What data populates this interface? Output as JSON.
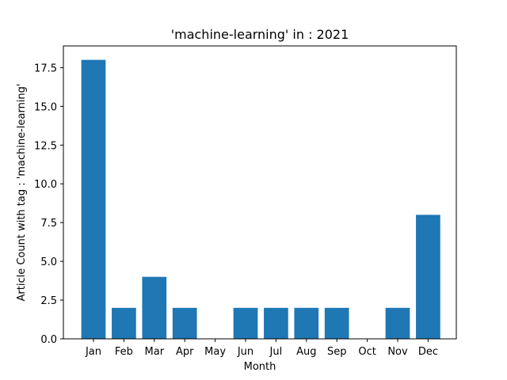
{
  "chart_data": {
    "type": "bar",
    "title": "'machine-learning' in : 2021",
    "xlabel": "Month",
    "ylabel": "Article Count with tag : 'machine-learning'",
    "categories": [
      "Jan",
      "Feb",
      "Mar",
      "Apr",
      "May",
      "Jun",
      "Jul",
      "Aug",
      "Sep",
      "Oct",
      "Nov",
      "Dec"
    ],
    "values": [
      18,
      2,
      4,
      2,
      0,
      2,
      2,
      2,
      2,
      0,
      2,
      8
    ],
    "ylim": [
      0,
      18.9
    ],
    "yticks": [
      "0.0",
      "2.5",
      "5.0",
      "7.5",
      "10.0",
      "12.5",
      "15.0",
      "17.5"
    ],
    "bar_color": "#1f77b4",
    "grid": false
  }
}
